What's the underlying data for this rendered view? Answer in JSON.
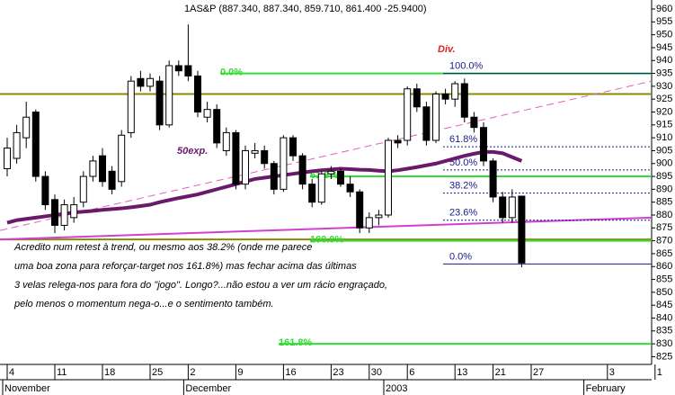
{
  "chart_data": {
    "type": "candlestick",
    "title": "1AS&P (887.340, 887.340, 859.710, 861.400 -25.9400)",
    "categories": [
      "4",
      null,
      null,
      null,
      null,
      "11",
      null,
      null,
      null,
      null,
      "18",
      null,
      null,
      null,
      null,
      "25",
      null,
      null,
      null,
      "2",
      null,
      null,
      null,
      null,
      "9",
      null,
      null,
      null,
      null,
      "16",
      null,
      null,
      null,
      null,
      "23",
      null,
      null,
      null,
      "30",
      null,
      null,
      null,
      "6",
      null,
      null,
      null,
      null,
      "13",
      null,
      null,
      null,
      "21",
      null,
      null,
      null,
      "27",
      null,
      null,
      null,
      null,
      null,
      null,
      null,
      "3",
      null,
      null,
      null,
      null,
      "1"
    ],
    "month_labels": [
      "November",
      "December",
      "2003",
      "February"
    ],
    "open": [
      898,
      902,
      910,
      920,
      895,
      886,
      876,
      879,
      885,
      895,
      903,
      897,
      893,
      912,
      933,
      930,
      932,
      915,
      938,
      938,
      934,
      918,
      921,
      905,
      912,
      892,
      904,
      905,
      900,
      890,
      910,
      903,
      892,
      885,
      896,
      897,
      892,
      889,
      875,
      879,
      880,
      909,
      909,
      929,
      922,
      909,
      927,
      925,
      931,
      918,
      914,
      901,
      887,
      879,
      887.34,
      null,
      null,
      null,
      null,
      null,
      null,
      null,
      null,
      null,
      null,
      null,
      null,
      null,
      null
    ],
    "high": [
      910,
      915,
      924,
      921,
      897,
      888,
      886,
      887,
      897,
      903,
      906,
      899,
      913,
      934,
      936,
      935,
      934,
      940,
      940,
      954,
      936,
      924,
      923,
      914,
      913,
      907,
      908,
      907,
      901,
      911,
      911,
      904,
      894,
      897,
      899,
      898,
      895,
      890,
      881,
      882,
      910,
      911,
      930,
      931,
      924,
      928,
      929,
      932,
      933,
      920,
      916,
      902,
      889,
      890,
      887.34,
      null,
      null,
      null,
      null,
      null,
      null,
      null,
      null,
      null,
      null,
      null,
      null,
      null,
      null
    ],
    "low": [
      895,
      900,
      906,
      893,
      882,
      873,
      874,
      877,
      883,
      893,
      891,
      888,
      891,
      910,
      928,
      928,
      913,
      914,
      934,
      932,
      918,
      916,
      906,
      903,
      890,
      890,
      902,
      898,
      888,
      889,
      901,
      890,
      883,
      884,
      894,
      891,
      887,
      873,
      873,
      876,
      879,
      906,
      907,
      920,
      907,
      908,
      923,
      922,
      916,
      912,
      899,
      885,
      877,
      877,
      859.71,
      null,
      null,
      null,
      null,
      null,
      null,
      null,
      null,
      null,
      null,
      null,
      null,
      null,
      null
    ],
    "close": [
      906,
      912,
      918,
      895,
      884,
      876,
      884,
      884,
      895,
      901,
      893,
      890,
      911,
      932,
      930,
      933,
      915,
      938,
      936,
      934,
      920,
      921,
      908,
      912,
      892,
      905,
      905,
      900,
      890,
      910,
      903,
      892,
      885,
      896,
      897,
      892,
      889,
      875,
      879,
      880,
      909,
      908,
      929,
      922,
      909,
      927,
      925,
      931,
      918,
      914,
      901,
      887,
      879,
      887,
      861.4,
      null,
      null,
      null,
      null,
      null,
      null,
      null,
      null,
      null,
      null,
      null,
      null,
      null,
      null
    ],
    "ma": {
      "name": "50exp.",
      "color": "#6b1a6b",
      "values": [
        877,
        878,
        878.5,
        879,
        879.5,
        880,
        880.5,
        881,
        881.3,
        881.6,
        882,
        882.3,
        882.6,
        883,
        883.5,
        884,
        885,
        885.8,
        886.6,
        887.3,
        888,
        889,
        890,
        891,
        892,
        893,
        894,
        894.5,
        895,
        895.5,
        896,
        896.5,
        897,
        897.4,
        897.7,
        898,
        897.8,
        897.6,
        897.5,
        897.2,
        897,
        897.4,
        898,
        898.6,
        899.3,
        900,
        901,
        902,
        903,
        903.8,
        904.5,
        904.5,
        904,
        902.5,
        901,
        null,
        null,
        null,
        null,
        null,
        null,
        null,
        null,
        null,
        null,
        null,
        null,
        null,
        null
      ]
    },
    "ylim": [
      822,
      963.5
    ],
    "yticks": [
      825,
      830,
      835,
      840,
      845,
      850,
      855,
      860,
      865,
      870,
      875,
      880,
      885,
      890,
      895,
      900,
      905,
      910,
      915,
      920,
      925,
      930,
      935,
      940,
      945,
      950,
      955,
      960
    ],
    "hlines": [
      {
        "level": 927,
        "color": "#8a8a00"
      },
      {
        "level": 870.5,
        "color": "#8a8a00"
      }
    ],
    "trendlines": [
      {
        "from": 874,
        "to": 932,
        "color": "#e060c0",
        "dashed": true
      },
      {
        "from": 870.5,
        "to": 879,
        "color": "#d040d0",
        "dashed": false
      }
    ],
    "fib_green": [
      {
        "label": "0.0%",
        "level": 935
      },
      {
        "label": "61.8%",
        "level": 895
      },
      {
        "label": "100.0%",
        "level": 870
      },
      {
        "label": "161.8%",
        "level": 830
      }
    ],
    "fib_blue": [
      {
        "label": "100.0%",
        "level": 935
      },
      {
        "label": "61.8%",
        "level": 906.5
      },
      {
        "label": "50.0%",
        "level": 897.5
      },
      {
        "label": "38.2%",
        "level": 888.5
      },
      {
        "label": "23.6%",
        "level": 878
      },
      {
        "label": "0.0%",
        "level": 861
      }
    ],
    "annotation_div": "Div.",
    "comment": [
      "Acredito num retest à trend, ou mesmo aos 38.2% (onde me parece",
      "uma boa zona para reforçar-target nos 161.8%) mas fechar acima das últimas",
      " 3 velas relega-nos  para fora do \"jogo\". Longo?...não estou a ver um rácio engraçado,",
      "pelo menos o momentum nega-o...e o sentimento também."
    ]
  }
}
